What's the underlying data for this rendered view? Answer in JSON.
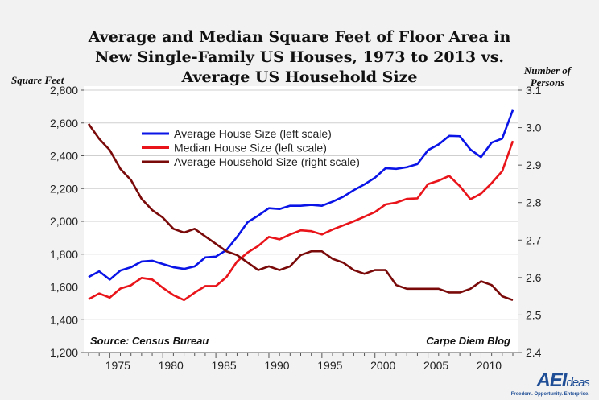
{
  "chart_data": {
    "type": "line",
    "title": "Average and Median Square Feet of Floor Area in New Single-Family US Houses, 1973 to 2013 vs. Average US Household Size",
    "title_lines": [
      "Average and Median Square Feet of Floor Area in",
      "New Single-Family US Houses, 1973 to 2013 vs.",
      "Average US Household Size"
    ],
    "ylabel_left": "Square Feet",
    "ylabel_right": "Number of Persons",
    "ylim_left": [
      1200,
      2800
    ],
    "ylim_right": [
      2.4,
      3.1
    ],
    "xlim": [
      1973,
      2013
    ],
    "x_ticks": [
      1975,
      1980,
      1985,
      1990,
      1995,
      2000,
      2005,
      2010
    ],
    "y_ticks_left": [
      "1,200",
      "1,400",
      "1,600",
      "1,800",
      "2,000",
      "2,200",
      "2,400",
      "2,600",
      "2,800"
    ],
    "y_ticks_right": [
      "2.4",
      "2.5",
      "2.6",
      "2.7",
      "2.8",
      "2.9",
      "3.0",
      "3.1"
    ],
    "grid": true,
    "legend_position": "top-left",
    "x": [
      1973,
      1974,
      1975,
      1976,
      1977,
      1978,
      1979,
      1980,
      1981,
      1982,
      1983,
      1984,
      1985,
      1986,
      1987,
      1988,
      1989,
      1990,
      1991,
      1992,
      1993,
      1994,
      1995,
      1996,
      1997,
      1998,
      1999,
      2000,
      2001,
      2002,
      2003,
      2004,
      2005,
      2006,
      2007,
      2008,
      2009,
      2010,
      2011,
      2012,
      2013
    ],
    "series": [
      {
        "name": "Average House Size (left scale)",
        "axis": "left",
        "color": "#0a14e6",
        "values": [
          1660,
          1695,
          1645,
          1700,
          1720,
          1755,
          1760,
          1740,
          1720,
          1710,
          1725,
          1780,
          1785,
          1825,
          1905,
          1995,
          2035,
          2080,
          2075,
          2095,
          2095,
          2100,
          2095,
          2120,
          2150,
          2190,
          2225,
          2266,
          2324,
          2320,
          2330,
          2349,
          2434,
          2469,
          2521,
          2519,
          2438,
          2392,
          2480,
          2505,
          2679
        ]
      },
      {
        "name": "Median House Size (left scale)",
        "axis": "left",
        "color": "#e8141a",
        "values": [
          1525,
          1560,
          1535,
          1590,
          1610,
          1655,
          1645,
          1595,
          1550,
          1520,
          1565,
          1605,
          1605,
          1660,
          1755,
          1810,
          1850,
          1905,
          1890,
          1920,
          1945,
          1940,
          1920,
          1950,
          1975,
          2000,
          2028,
          2057,
          2103,
          2114,
          2137,
          2140,
          2227,
          2248,
          2277,
          2215,
          2135,
          2169,
          2233,
          2306,
          2490
        ]
      },
      {
        "name": "Average Household Size (right scale)",
        "axis": "right",
        "color": "#7a0a0a",
        "values": [
          3.01,
          2.97,
          2.94,
          2.89,
          2.86,
          2.81,
          2.78,
          2.76,
          2.73,
          2.72,
          2.73,
          2.71,
          2.69,
          2.67,
          2.66,
          2.64,
          2.62,
          2.63,
          2.62,
          2.63,
          2.66,
          2.67,
          2.67,
          2.65,
          2.64,
          2.62,
          2.61,
          2.62,
          2.62,
          2.58,
          2.57,
          2.57,
          2.57,
          2.57,
          2.56,
          2.56,
          2.57,
          2.59,
          2.58,
          2.55,
          2.54
        ]
      }
    ],
    "annotations": {
      "source": "Source: Census Bureau",
      "credit": "Carpe Diem Blog"
    }
  },
  "logo": {
    "text": "AEIdeas",
    "tagline": "Freedom. Opportunity. Enterprise."
  }
}
